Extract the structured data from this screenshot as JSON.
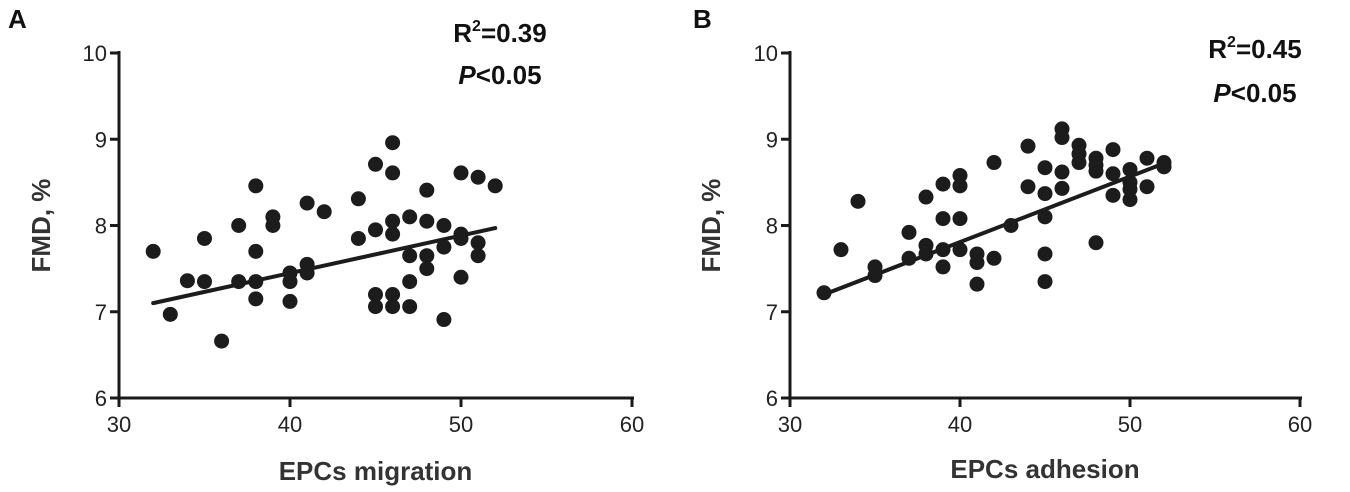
{
  "chart_data": [
    {
      "type": "scatter",
      "panel": "A",
      "xlabel": "EPCs migration",
      "ylabel": "FMD, %",
      "xlim": [
        30,
        60
      ],
      "ylim": [
        6,
        10
      ],
      "xticks": [
        30,
        40,
        50,
        60
      ],
      "yticks": [
        6,
        7,
        8,
        9,
        10
      ],
      "r2_prefix": "R",
      "r2_sup": "2",
      "r2_value": "=0.39",
      "p_italic": "P",
      "p_rest": "<0.05",
      "fit": {
        "x": [
          32,
          52
        ],
        "y": [
          7.1,
          7.97
        ]
      },
      "points": [
        [
          32,
          7.7
        ],
        [
          33,
          6.97
        ],
        [
          34,
          7.36
        ],
        [
          35,
          7.85
        ],
        [
          35,
          7.35
        ],
        [
          36,
          6.66
        ],
        [
          37,
          8.0
        ],
        [
          37,
          7.35
        ],
        [
          38,
          8.46
        ],
        [
          38,
          7.7
        ],
        [
          38,
          7.35
        ],
        [
          38,
          7.15
        ],
        [
          39,
          8.1
        ],
        [
          39,
          8.0
        ],
        [
          40,
          7.45
        ],
        [
          40,
          7.35
        ],
        [
          40,
          7.12
        ],
        [
          41,
          8.26
        ],
        [
          41,
          7.55
        ],
        [
          41,
          7.45
        ],
        [
          42,
          8.16
        ],
        [
          44,
          8.31
        ],
        [
          44,
          7.85
        ],
        [
          45,
          8.71
        ],
        [
          45,
          7.95
        ],
        [
          45,
          7.2
        ],
        [
          45,
          7.06
        ],
        [
          46,
          8.96
        ],
        [
          46,
          8.61
        ],
        [
          46,
          8.05
        ],
        [
          46,
          7.9
        ],
        [
          46,
          7.2
        ],
        [
          46,
          7.06
        ],
        [
          47,
          8.1
        ],
        [
          47,
          7.65
        ],
        [
          47,
          7.35
        ],
        [
          47,
          7.06
        ],
        [
          48,
          8.41
        ],
        [
          48,
          8.05
        ],
        [
          48,
          7.65
        ],
        [
          48,
          7.5
        ],
        [
          49,
          8.0
        ],
        [
          49,
          7.75
        ],
        [
          49,
          6.91
        ],
        [
          50,
          8.61
        ],
        [
          50,
          7.9
        ],
        [
          50,
          7.85
        ],
        [
          50,
          7.4
        ],
        [
          51,
          8.56
        ],
        [
          51,
          7.8
        ],
        [
          51,
          7.65
        ],
        [
          52,
          8.46
        ]
      ]
    },
    {
      "type": "scatter",
      "panel": "B",
      "xlabel": "EPCs adhesion",
      "ylabel": "FMD, %",
      "xlim": [
        30,
        60
      ],
      "ylim": [
        6,
        10
      ],
      "xticks": [
        30,
        40,
        50,
        60
      ],
      "yticks": [
        6,
        7,
        8,
        9,
        10
      ],
      "r2_prefix": "R",
      "r2_sup": "2",
      "r2_value": "=0.45",
      "p_italic": "P",
      "p_rest": "<0.05",
      "fit": {
        "x": [
          32,
          52
        ],
        "y": [
          7.2,
          8.72
        ]
      },
      "points": [
        [
          32,
          7.22
        ],
        [
          33,
          7.72
        ],
        [
          34,
          8.28
        ],
        [
          35,
          7.52
        ],
        [
          35,
          7.42
        ],
        [
          37,
          7.92
        ],
        [
          37,
          7.62
        ],
        [
          38,
          8.33
        ],
        [
          38,
          7.77
        ],
        [
          38,
          7.67
        ],
        [
          39,
          8.48
        ],
        [
          39,
          8.08
        ],
        [
          39,
          7.72
        ],
        [
          39,
          7.52
        ],
        [
          40,
          8.58
        ],
        [
          40,
          8.46
        ],
        [
          40,
          8.08
        ],
        [
          40,
          7.72
        ],
        [
          41,
          7.67
        ],
        [
          41,
          7.57
        ],
        [
          41,
          7.32
        ],
        [
          42,
          8.73
        ],
        [
          42,
          7.62
        ],
        [
          43,
          8.0
        ],
        [
          44,
          8.92
        ],
        [
          44,
          8.45
        ],
        [
          45,
          8.67
        ],
        [
          45,
          8.37
        ],
        [
          45,
          8.1
        ],
        [
          45,
          7.67
        ],
        [
          45,
          7.35
        ],
        [
          46,
          9.12
        ],
        [
          46,
          9.02
        ],
        [
          46,
          8.62
        ],
        [
          46,
          8.43
        ],
        [
          47,
          8.93
        ],
        [
          47,
          8.83
        ],
        [
          47,
          8.73
        ],
        [
          48,
          8.78
        ],
        [
          48,
          8.7
        ],
        [
          48,
          8.63
        ],
        [
          48,
          7.8
        ],
        [
          49,
          8.88
        ],
        [
          49,
          8.6
        ],
        [
          49,
          8.35
        ],
        [
          50,
          8.65
        ],
        [
          50,
          8.5
        ],
        [
          50,
          8.42
        ],
        [
          50,
          8.3
        ],
        [
          51,
          8.78
        ],
        [
          51,
          8.45
        ],
        [
          52,
          8.73
        ],
        [
          52,
          8.68
        ]
      ]
    }
  ]
}
